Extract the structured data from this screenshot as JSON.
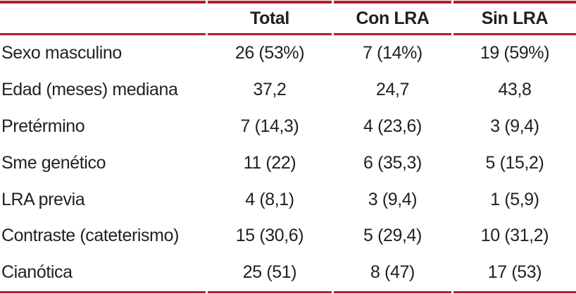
{
  "table": {
    "accent_color": "#b01f2c",
    "text_color": "#231f20",
    "header": {
      "corner": "",
      "total": "Total",
      "con_lra": "Con LRA",
      "sin_lra": "Sin LRA"
    },
    "rows": [
      {
        "label": "Sexo masculino",
        "total": "26 (53%)",
        "con_lra": "7 (14%)",
        "sin_lra": "19 (59%)"
      },
      {
        "label": "Edad (meses) mediana",
        "total": "37,2",
        "con_lra": "24,7",
        "sin_lra": "43,8"
      },
      {
        "label": "Pretérmino",
        "total": "7 (14,3)",
        "con_lra": "4 (23,6)",
        "sin_lra": "3 (9,4)"
      },
      {
        "label": "Sme genético",
        "total": "11 (22)",
        "con_lra": "6 (35,3)",
        "sin_lra": "5 (15,2)"
      },
      {
        "label": "LRA previa",
        "total": "4 (8,1)",
        "con_lra": "3 (9,4)",
        "sin_lra": "1 (5,9)"
      },
      {
        "label": "Contraste (cateterismo)",
        "total": "15 (30,6)",
        "con_lra": "5 (29,4)",
        "sin_lra": "10 (31,2)"
      },
      {
        "label": "Cianótica",
        "total": "25 (51)",
        "con_lra": "8 (47)",
        "sin_lra": "17 (53)"
      }
    ]
  },
  "chart_data": {
    "type": "table",
    "columns": [
      "",
      "Total",
      "Con LRA",
      "Sin LRA"
    ],
    "rows": [
      [
        "Sexo masculino",
        "26 (53%)",
        "7 (14%)",
        "19 (59%)"
      ],
      [
        "Edad (meses) mediana",
        "37,2",
        "24,7",
        "43,8"
      ],
      [
        "Pretérmino",
        "7 (14,3)",
        "4 (23,6)",
        "3 (9,4)"
      ],
      [
        "Sme genético",
        "11 (22)",
        "6 (35,3)",
        "5 (15,2)"
      ],
      [
        "LRA previa",
        "4 (8,1)",
        "3 (9,4)",
        "1 (5,9)"
      ],
      [
        "Contraste (cateterismo)",
        "15 (30,6)",
        "5 (29,4)",
        "10 (31,2)"
      ],
      [
        "Cianótica",
        "25 (51)",
        "8 (47)",
        "17 (53)"
      ]
    ]
  }
}
